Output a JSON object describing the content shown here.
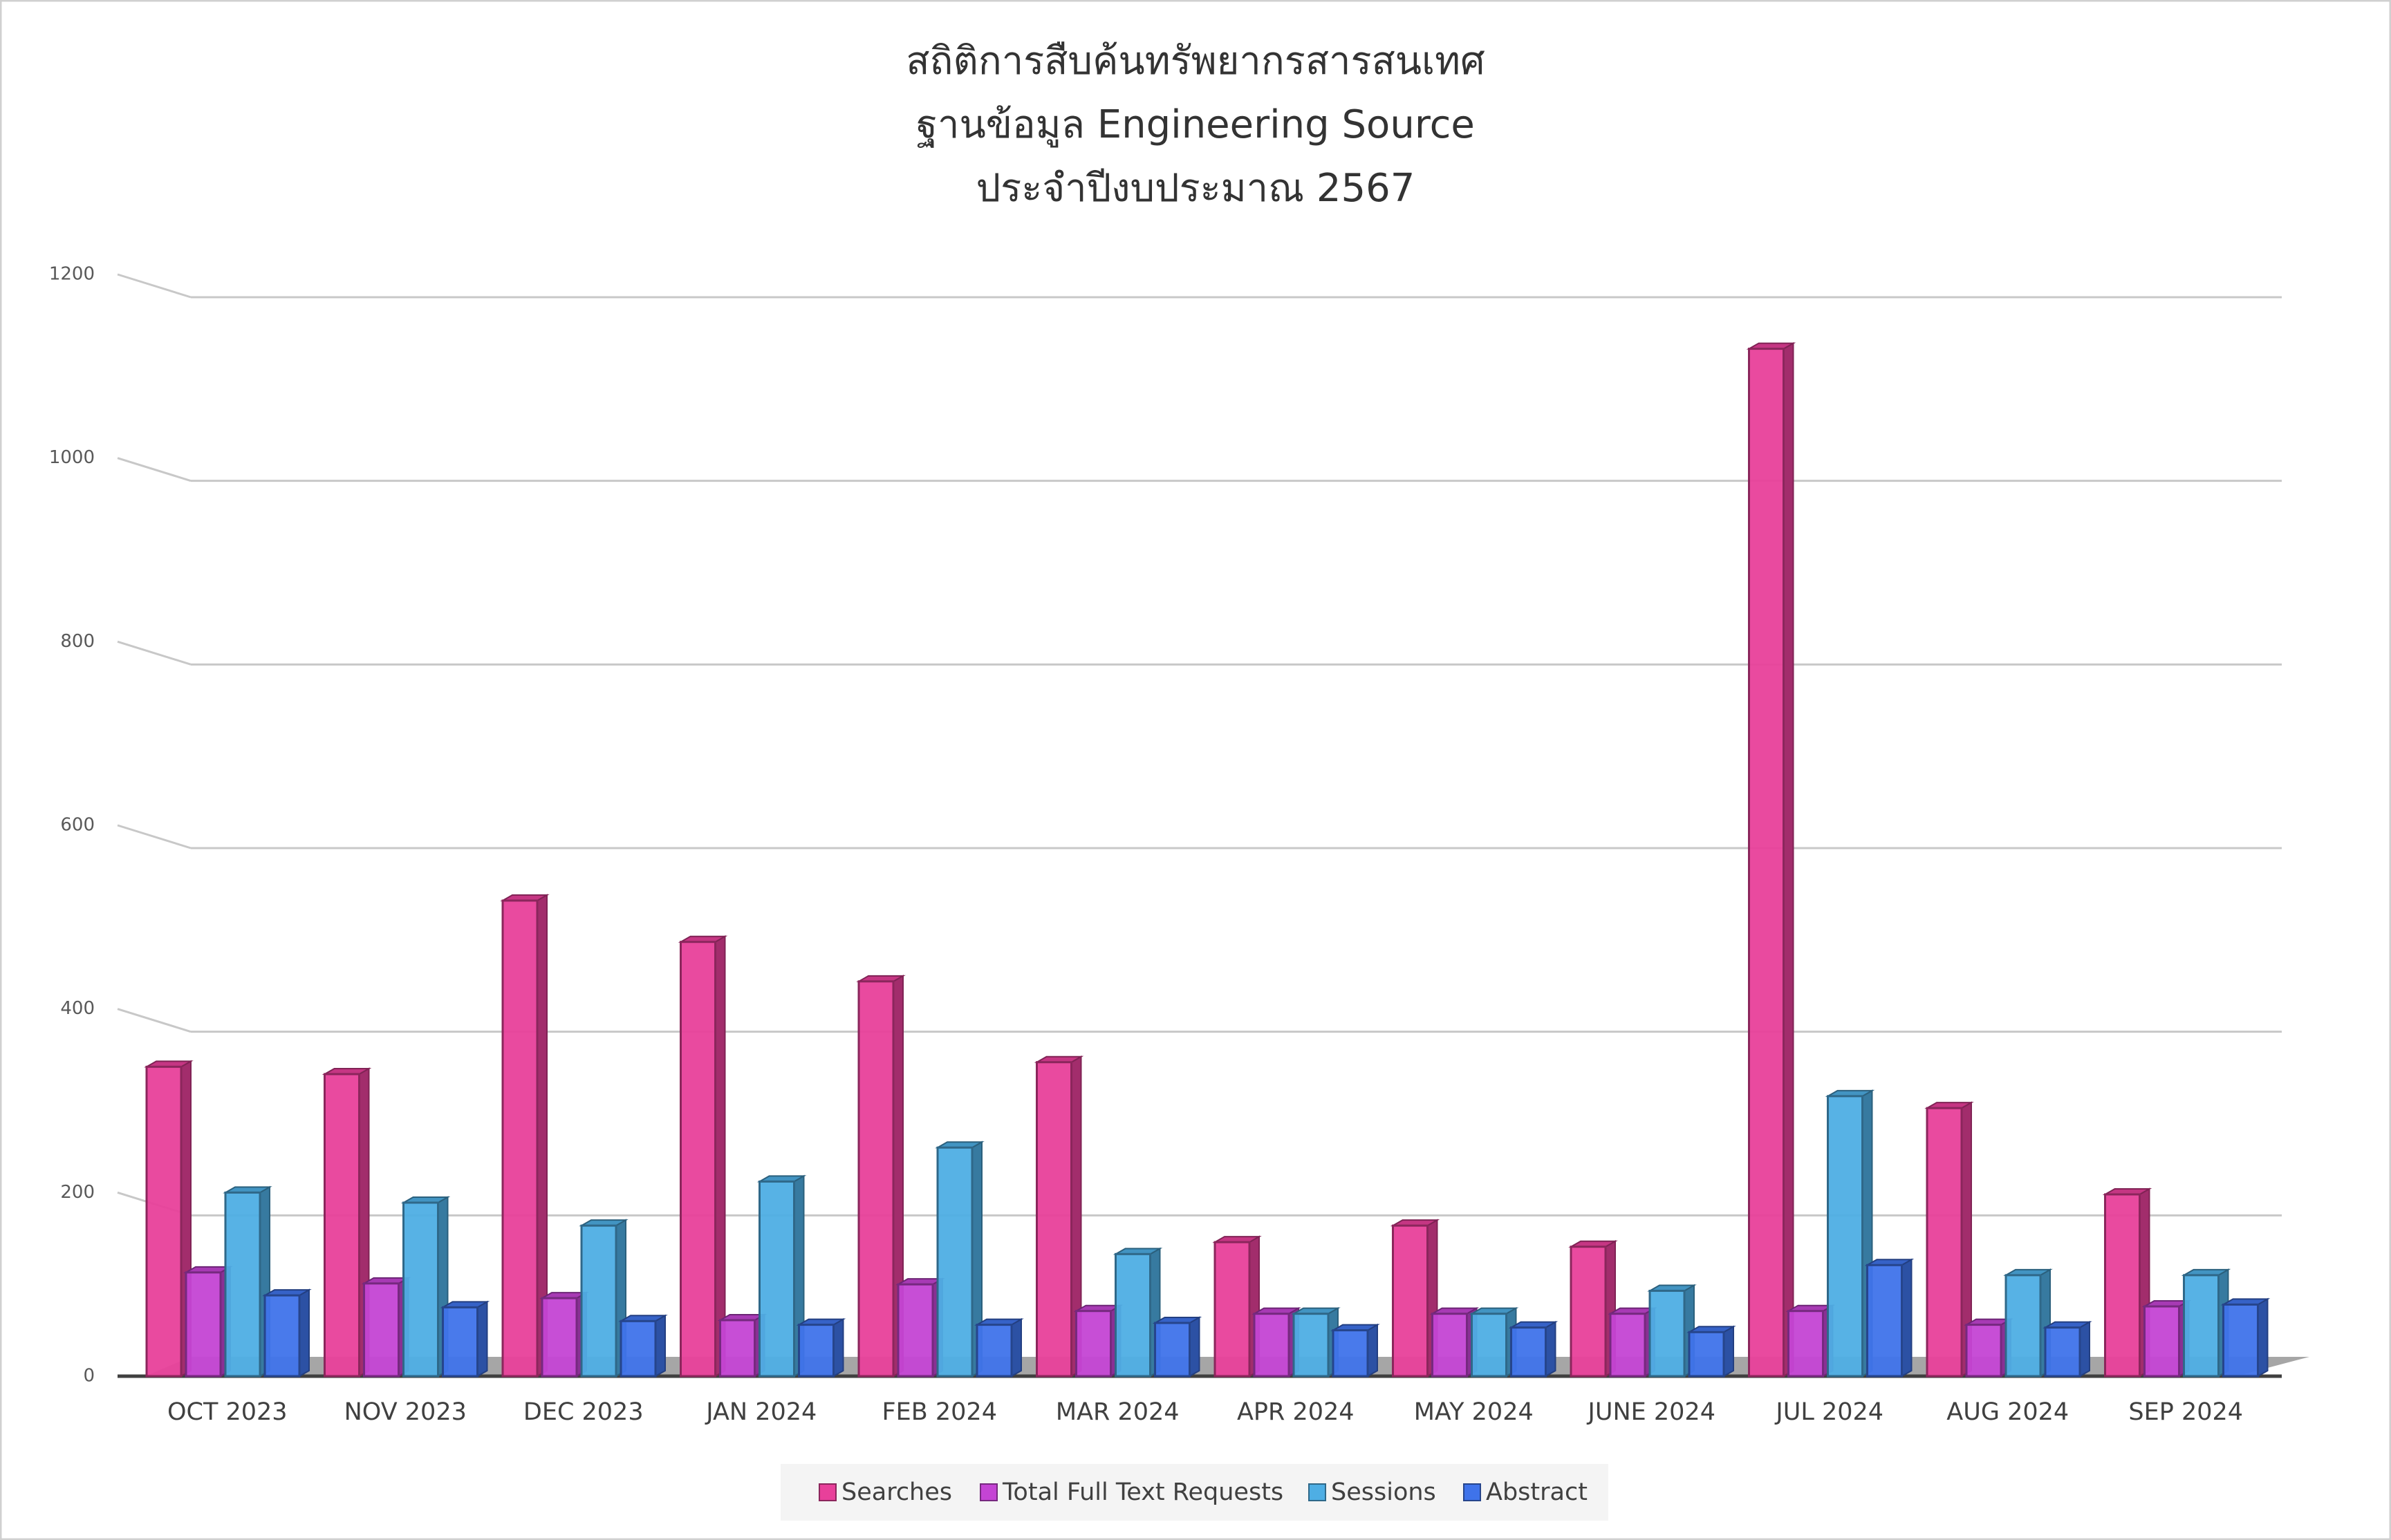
{
  "chart_data": {
    "type": "bar3d",
    "title": [
      "สถิติการสืบค้นทรัพยากรสารสนเทศ",
      "ฐานข้อมูล Engineering Source",
      "ประจำปีงบประมาณ 2567"
    ],
    "categories": [
      "OCT 2023",
      "NOV 2023",
      "DEC 2023",
      "JAN 2024",
      "FEB 2024",
      "MAR 2024",
      "APR 2024",
      "MAY 2024",
      "JUNE 2024",
      "JUL 2024",
      "AUG 2024",
      "SEP 2024"
    ],
    "series": [
      {
        "name": "Searches",
        "color": "#e8409a",
        "values": [
          337,
          329,
          518,
          473,
          430,
          342,
          146,
          164,
          141,
          1119,
          292,
          198
        ]
      },
      {
        "name": "Total Full Text Requests",
        "color": "#c444d4",
        "values": [
          113,
          101,
          85,
          61,
          100,
          71,
          68,
          68,
          68,
          71,
          56,
          76
        ]
      },
      {
        "name": "Sessions",
        "color": "#4eaee4",
        "values": [
          200,
          189,
          164,
          212,
          249,
          133,
          68,
          68,
          93,
          305,
          110,
          110
        ]
      },
      {
        "name": "Abstract",
        "color": "#3f73ea",
        "values": [
          88,
          75,
          60,
          56,
          56,
          58,
          50,
          53,
          48,
          121,
          53,
          78
        ]
      }
    ],
    "ylim": [
      0,
      1200
    ],
    "yticks": [
      0,
      200,
      400,
      600,
      800,
      1000,
      1200
    ],
    "grid": true,
    "legend": "bottom"
  }
}
